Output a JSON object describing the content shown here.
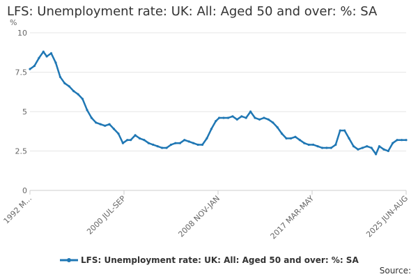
{
  "chart_data": {
    "type": "line",
    "title": "LFS: Unemployment rate: UK: All: Aged 50 and over: %: SA",
    "ylabel": "%",
    "xlabel": "",
    "ylim": [
      0,
      10
    ],
    "yticks": [
      {
        "value": 0,
        "label": "0"
      },
      {
        "value": 2.5,
        "label": "2.5"
      },
      {
        "value": 5,
        "label": "5"
      },
      {
        "value": 7.5,
        "label": "7.5"
      },
      {
        "value": 10,
        "label": "10"
      }
    ],
    "xticks": [
      "1992 M...",
      "2000 JUL-SEP",
      "2008 NOV-JAN",
      "2017 MAR-MAY",
      "2025 JUN-AUG"
    ],
    "grid": true,
    "legend_position": "bottom",
    "series": [
      {
        "name": "LFS: Unemployment rate: UK: All: Aged 50 and over: %: SA",
        "color": "#1f77b4",
        "x": [
          1992.0,
          1992.4,
          1992.8,
          1993.2,
          1993.5,
          1993.9,
          1994.3,
          1994.7,
          1995.1,
          1995.5,
          1995.9,
          1996.3,
          1996.7,
          1997.1,
          1997.5,
          1997.9,
          1998.3,
          1998.7,
          1999.1,
          1999.5,
          1999.9,
          2000.3,
          2000.7,
          2001.0,
          2001.4,
          2001.8,
          2002.2,
          2002.6,
          2003.0,
          2003.4,
          2003.8,
          2004.2,
          2004.6,
          2005.0,
          2005.4,
          2005.8,
          2006.2,
          2006.6,
          2007.0,
          2007.4,
          2007.8,
          2008.2,
          2008.6,
          2008.9,
          2009.3,
          2009.7,
          2010.1,
          2010.5,
          2010.9,
          2011.3,
          2011.7,
          2012.1,
          2012.5,
          2012.9,
          2013.3,
          2013.7,
          2014.1,
          2014.5,
          2014.9,
          2015.3,
          2015.7,
          2016.1,
          2016.5,
          2016.9,
          2017.3,
          2017.7,
          2018.1,
          2018.5,
          2018.9,
          2019.3,
          2019.7,
          2020.1,
          2020.5,
          2020.9,
          2021.3,
          2021.7,
          2022.1,
          2022.5,
          2022.9,
          2023.2,
          2023.6,
          2024.0,
          2024.4,
          2024.8,
          2025.2,
          2025.6
        ],
        "y": [
          7.7,
          7.9,
          8.4,
          8.8,
          8.5,
          8.7,
          8.1,
          7.2,
          6.8,
          6.6,
          6.3,
          6.1,
          5.8,
          5.1,
          4.6,
          4.3,
          4.2,
          4.1,
          4.2,
          3.9,
          3.6,
          3.0,
          3.2,
          3.2,
          3.5,
          3.3,
          3.2,
          3.0,
          2.9,
          2.8,
          2.7,
          2.7,
          2.9,
          3.0,
          3.0,
          3.2,
          3.1,
          3.0,
          2.9,
          2.9,
          3.3,
          3.9,
          4.4,
          4.6,
          4.6,
          4.6,
          4.7,
          4.5,
          4.7,
          4.6,
          5.0,
          4.6,
          4.5,
          4.6,
          4.5,
          4.3,
          4.0,
          3.6,
          3.3,
          3.3,
          3.4,
          3.2,
          3.0,
          2.9,
          2.9,
          2.8,
          2.7,
          2.7,
          2.7,
          2.9,
          3.8,
          3.8,
          3.3,
          2.8,
          2.6,
          2.7,
          2.8,
          2.7,
          2.3,
          2.8,
          2.6,
          2.5,
          3.0,
          3.2,
          3.2,
          3.2
        ]
      }
    ]
  },
  "footer": {
    "source_label": "Source:"
  }
}
